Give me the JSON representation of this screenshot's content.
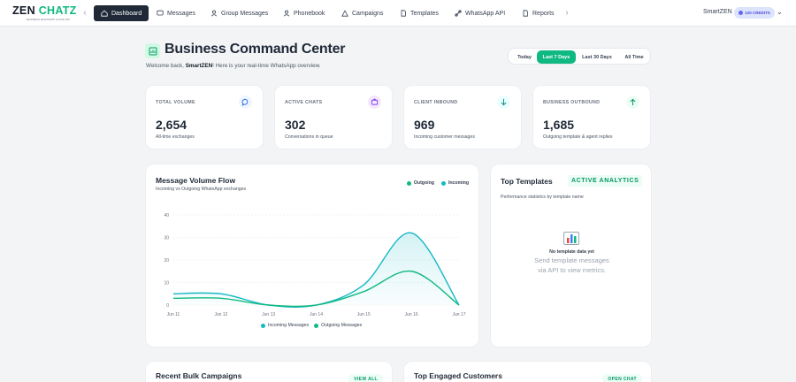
{
  "nav": {
    "logo": {
      "part1": "ZEN ",
      "part2": "CHATZ",
      "tagline": "BUSINESS WHATSAPP CLOUD API"
    },
    "items": [
      {
        "label": "Dashboard",
        "icon": "home-icon",
        "active": true
      },
      {
        "label": "Messages",
        "icon": "chat-icon",
        "active": false
      },
      {
        "label": "Group Messages",
        "icon": "group-icon",
        "active": false
      },
      {
        "label": "Phonebook",
        "icon": "contacts-icon",
        "active": false
      },
      {
        "label": "Campaigns",
        "icon": "megaphone-icon",
        "active": false
      },
      {
        "label": "Templates",
        "icon": "document-icon",
        "active": false
      },
      {
        "label": "WhatsApp API",
        "icon": "link-icon",
        "active": false
      },
      {
        "label": "Reports",
        "icon": "report-icon",
        "active": false
      }
    ],
    "brand": "SmartZEN",
    "credits": "120 CREDITS"
  },
  "header": {
    "title": "Business Command Center",
    "welcome_prefix": "Welcome back, ",
    "welcome_name": "SmartZEN",
    "welcome_suffix": "! Here is your real-time WhatsApp overview.",
    "ranges": [
      "Today",
      "Last 7 Days",
      "Last 30 Days",
      "All Time"
    ],
    "active_range": "Last 7 Days"
  },
  "stats": [
    {
      "label": "TOTAL VOLUME",
      "value": "2,654",
      "sub": "All-time exchanges",
      "icon": "chat-icon",
      "icon_color": "#2563eb",
      "icon_bg": "#eff6ff"
    },
    {
      "label": "ACTIVE CHATS",
      "value": "302",
      "sub": "Conversations in queue",
      "icon": "inbox-icon",
      "icon_color": "#7c3aed",
      "icon_bg": "#f3e8ff"
    },
    {
      "label": "CLIENT INBOUND",
      "value": "969",
      "sub": "Incoming customer messages",
      "icon": "arrow-down-icon",
      "icon_color": "#0d9488",
      "icon_bg": "#ecfeff"
    },
    {
      "label": "BUSINESS OUTBOUND",
      "value": "1,685",
      "sub": "Outgoing template & agent replies",
      "icon": "arrow-up-icon",
      "icon_color": "#059669",
      "icon_bg": "#ecfdf5"
    }
  ],
  "volume_chart": {
    "title": "Message Volume Flow",
    "subtitle": "Incoming vs Outgoing WhatsApp exchanges",
    "legend_top": [
      "Outgoing",
      "Incoming"
    ],
    "legend_bottom": [
      "Incoming Messages",
      "Outgoing Messages"
    ]
  },
  "chart_data": {
    "type": "line",
    "x": [
      "Jun 11",
      "Jun 12",
      "Jun 13",
      "Jun 14",
      "Jun 15",
      "Jun 16",
      "Jun 17"
    ],
    "yticks": [
      0,
      10,
      20,
      30,
      40
    ],
    "ylim": [
      0,
      40
    ],
    "grid": true,
    "legend": "top-right",
    "series": [
      {
        "name": "Incoming Messages",
        "values": [
          5,
          5,
          0,
          0,
          9,
          32,
          0
        ],
        "color": "#14b8c6"
      },
      {
        "name": "Outgoing Messages",
        "values": [
          3,
          3,
          0,
          0,
          6,
          15,
          0
        ],
        "color": "#10b981"
      }
    ]
  },
  "templates": {
    "title": "Top Templates",
    "badge": "ACTIVE ANALYTICS",
    "subtitle": "Performance statistics by template name",
    "empty_title": "No template data yet",
    "empty_line1": "Send template messages",
    "empty_line2": "via API to view metrics."
  },
  "bottom": {
    "campaigns_title": "Recent Bulk Campaigns",
    "campaigns_button": "VIEW ALL",
    "customers_title": "Top Engaged Customers",
    "customers_button": "OPEN CHAT"
  }
}
